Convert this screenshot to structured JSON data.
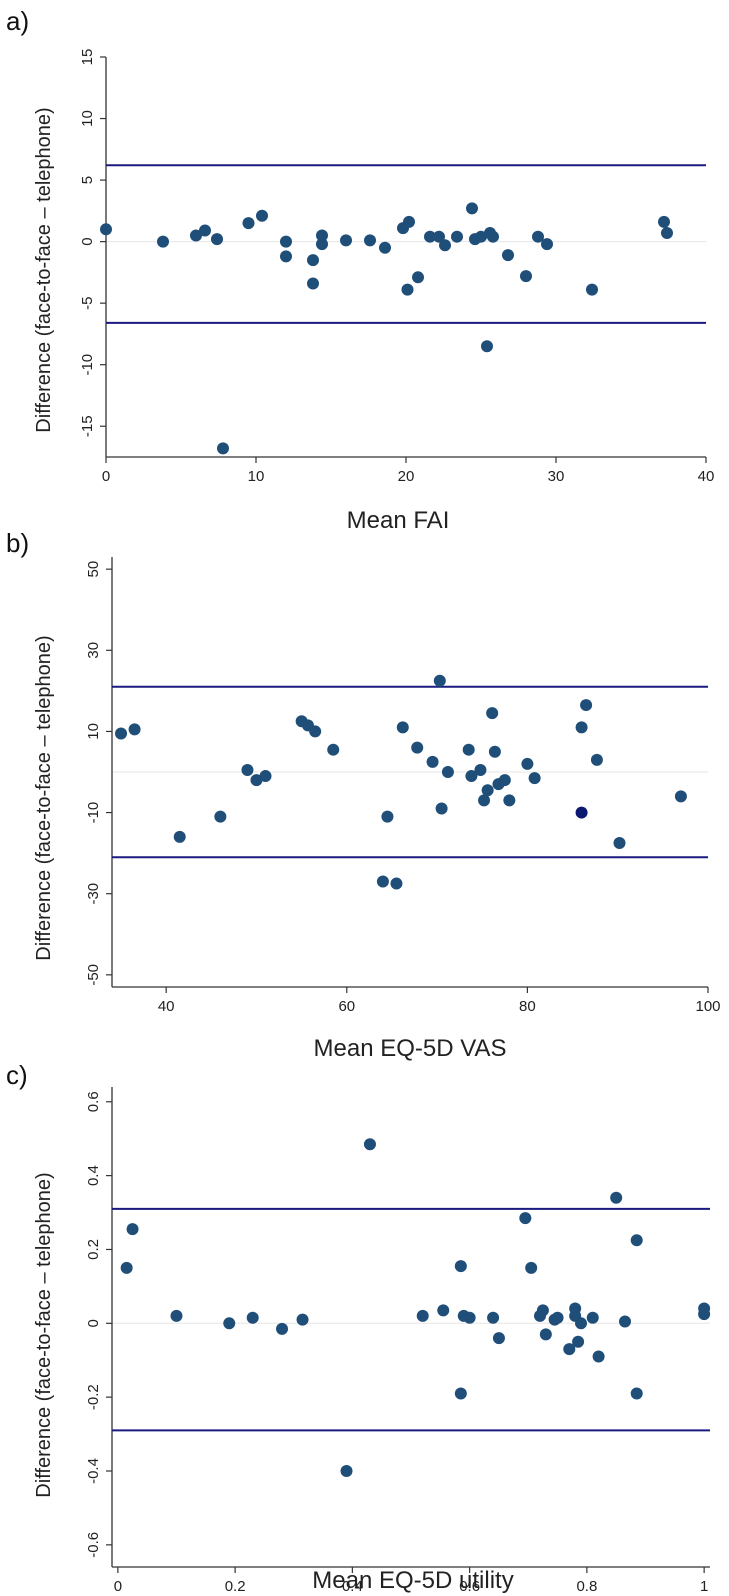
{
  "colors": {
    "point": "#1f4e79",
    "highlight_point": "#0a1a6e",
    "limit_line": "#1a1a80",
    "zero_line": "#e6e6e6",
    "axis": "#333333"
  },
  "chart_data": [
    {
      "type": "scatter",
      "panel": "a)",
      "xlabel": "Mean FAI",
      "ylabel": "Difference (face-to-face – telephone)",
      "xlim": [
        0,
        40
      ],
      "ylim": [
        -17.5,
        15
      ],
      "xticks": [
        0,
        10,
        20,
        30,
        40
      ],
      "yticks": [
        15,
        10,
        5,
        0,
        -5,
        -10,
        -15
      ],
      "reference_lines": [
        6.2,
        -6.6
      ],
      "zero_line": 0,
      "grid": false,
      "points": [
        [
          0,
          1
        ],
        [
          3.8,
          0
        ],
        [
          6,
          0.5
        ],
        [
          6.6,
          0.9
        ],
        [
          7.4,
          0.2
        ],
        [
          7.8,
          -16.8
        ],
        [
          9.5,
          1.5
        ],
        [
          10.4,
          2.1
        ],
        [
          12,
          0
        ],
        [
          12,
          -1.2
        ],
        [
          13.8,
          -1.5
        ],
        [
          13.8,
          -3.4
        ],
        [
          14.4,
          0.5
        ],
        [
          14.4,
          -0.2
        ],
        [
          16,
          0.1
        ],
        [
          17.6,
          0.1
        ],
        [
          18.6,
          -0.5
        ],
        [
          19.8,
          1.1
        ],
        [
          20.2,
          1.6
        ],
        [
          20.1,
          -3.9
        ],
        [
          20.8,
          -2.9
        ],
        [
          21.6,
          0.4
        ],
        [
          22.2,
          0.4
        ],
        [
          22.6,
          -0.3
        ],
        [
          23.4,
          0.4
        ],
        [
          24.4,
          2.7
        ],
        [
          24.6,
          0.2
        ],
        [
          25,
          0.4
        ],
        [
          25.6,
          0.7
        ],
        [
          25.4,
          -8.5
        ],
        [
          25.8,
          0.4
        ],
        [
          26.8,
          -1.1
        ],
        [
          28,
          -2.8
        ],
        [
          28.8,
          0.4
        ],
        [
          29.4,
          -0.2
        ],
        [
          32.4,
          -3.9
        ],
        [
          37.2,
          1.6
        ],
        [
          37.4,
          0.7
        ]
      ]
    },
    {
      "type": "scatter",
      "panel": "b)",
      "xlabel": "Mean EQ-5D VAS",
      "ylabel": "Difference (face-to-face – telephone)",
      "xlim": [
        34,
        100
      ],
      "ylim": [
        -53,
        53
      ],
      "xticks": [
        40,
        60,
        80,
        100
      ],
      "yticks": [
        50,
        30,
        10,
        -10,
        -30,
        -50
      ],
      "reference_lines": [
        21,
        -21
      ],
      "zero_line": 0,
      "grid": false,
      "points": [
        [
          35,
          9.5
        ],
        [
          36.5,
          10.5
        ],
        [
          41.5,
          -16
        ],
        [
          46,
          -11
        ],
        [
          49,
          0.5
        ],
        [
          50,
          -2
        ],
        [
          51,
          -1
        ],
        [
          55,
          12.5
        ],
        [
          55.7,
          11.5
        ],
        [
          56.5,
          10
        ],
        [
          58.5,
          5.5
        ],
        [
          64,
          -27
        ],
        [
          64.5,
          -11
        ],
        [
          65.5,
          -27.5
        ],
        [
          66.2,
          11
        ],
        [
          67.8,
          6
        ],
        [
          69.5,
          2.5
        ],
        [
          70.3,
          22.5
        ],
        [
          70.5,
          -9
        ],
        [
          71.2,
          0
        ],
        [
          73.5,
          5.5
        ],
        [
          73.8,
          -1
        ],
        [
          74.8,
          0.5
        ],
        [
          75.2,
          -7
        ],
        [
          75.6,
          -4.5
        ],
        [
          76.1,
          14.5
        ],
        [
          76.4,
          5
        ],
        [
          76.8,
          -3
        ],
        [
          77.5,
          -2
        ],
        [
          78,
          -7
        ],
        [
          80,
          2
        ],
        [
          80.8,
          -1.5
        ],
        [
          86,
          11
        ],
        [
          86.5,
          16.5
        ],
        [
          87.7,
          3
        ],
        [
          90.2,
          -17.5
        ],
        [
          97,
          -6
        ]
      ],
      "highlight_points": [
        [
          86,
          -10
        ]
      ]
    },
    {
      "type": "scatter",
      "panel": "c)",
      "xlabel": "Mean EQ-5D utility",
      "ylabel": "Difference (face-to-face – telephone)",
      "xlim": [
        -0.01,
        1.01
      ],
      "ylim": [
        -0.66,
        0.64
      ],
      "xticks": [
        0,
        0.2,
        0.4,
        0.6,
        0.8,
        1
      ],
      "yticks": [
        0.6,
        0.4,
        0.2,
        0,
        -0.2,
        -0.4,
        -0.6
      ],
      "reference_lines": [
        0.31,
        -0.29
      ],
      "zero_line": 0,
      "grid": false,
      "points": [
        [
          0.015,
          0.15
        ],
        [
          0.025,
          0.255
        ],
        [
          0.1,
          0.02
        ],
        [
          0.19,
          0
        ],
        [
          0.23,
          0.015
        ],
        [
          0.28,
          -0.015
        ],
        [
          0.315,
          0.01
        ],
        [
          0.39,
          -0.4
        ],
        [
          0.43,
          0.485
        ],
        [
          0.52,
          0.02
        ],
        [
          0.555,
          0.035
        ],
        [
          0.585,
          0.155
        ],
        [
          0.585,
          -0.19
        ],
        [
          0.59,
          0.02
        ],
        [
          0.6,
          0.015
        ],
        [
          0.64,
          0.015
        ],
        [
          0.65,
          -0.04
        ],
        [
          0.695,
          0.285
        ],
        [
          0.705,
          0.15
        ],
        [
          0.72,
          0.02
        ],
        [
          0.725,
          0.035
        ],
        [
          0.73,
          -0.03
        ],
        [
          0.745,
          0.01
        ],
        [
          0.75,
          0.015
        ],
        [
          0.77,
          -0.07
        ],
        [
          0.78,
          0.04
        ],
        [
          0.78,
          0.02
        ],
        [
          0.785,
          -0.05
        ],
        [
          0.79,
          0
        ],
        [
          0.81,
          0.015
        ],
        [
          0.82,
          -0.09
        ],
        [
          0.85,
          0.34
        ],
        [
          0.865,
          0.005
        ],
        [
          0.885,
          0.225
        ],
        [
          0.885,
          -0.19
        ],
        [
          1,
          0.04
        ],
        [
          1,
          0.025
        ]
      ]
    }
  ]
}
